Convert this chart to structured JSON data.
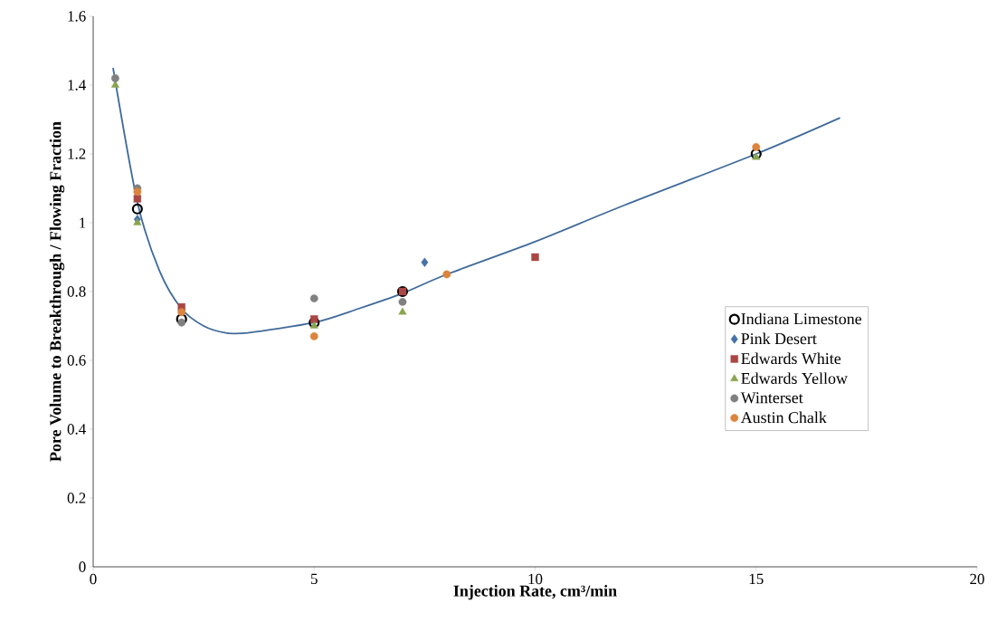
{
  "chart_data": {
    "type": "scatter",
    "xlabel": "Injection Rate, cm³/min",
    "ylabel": "Pore Volume to Breakthrough / Flowing Fraction",
    "xlim": [
      0,
      20
    ],
    "ylim": [
      0,
      1.6
    ],
    "xticks": [
      0,
      5,
      10,
      15,
      20
    ],
    "yticks": [
      0,
      0.2,
      0.4,
      0.6,
      0.8,
      1,
      1.2,
      1.4,
      1.6
    ],
    "grid": false,
    "legend": "right",
    "series": [
      {
        "name": "Indiana Limestone",
        "color": "#000000",
        "marker": "circle",
        "x": [
          1,
          2,
          5,
          7,
          15
        ],
        "values": [
          1.04,
          0.72,
          0.71,
          0.8,
          1.2
        ]
      },
      {
        "name": "Pink Desert",
        "color": "#4572a7",
        "marker": "diamond",
        "x": [
          1,
          7.5
        ],
        "values": [
          1.01,
          0.885
        ]
      },
      {
        "name": "Edwards White",
        "color": "#aa4643",
        "marker": "square",
        "x": [
          1,
          2,
          5,
          7,
          10
        ],
        "values": [
          1.07,
          0.755,
          0.72,
          0.8,
          0.9
        ]
      },
      {
        "name": "Edwards Yellow",
        "color": "#89a54e",
        "marker": "triangle",
        "x": [
          0.5,
          1,
          2,
          5,
          7,
          15
        ],
        "values": [
          1.4,
          1.0,
          null,
          0.7,
          0.74,
          1.19
        ]
      },
      {
        "name": "Winterset",
        "color": "#808080",
        "marker": "circle",
        "x": [
          0.5,
          1,
          2,
          5,
          7
        ],
        "values": [
          1.42,
          1.1,
          0.71,
          0.78,
          0.77
        ]
      },
      {
        "name": "Austin Chalk",
        "color": "#db843d",
        "marker": "circle",
        "x": [
          1,
          2,
          5,
          8,
          15
        ],
        "values": [
          1.09,
          0.74,
          0.67,
          0.85,
          1.22
        ]
      },
      {
        "type": "line",
        "color": "#3f6a9a",
        "marker": "none",
        "x": [
          0.45,
          1,
          1.5,
          2,
          2.5,
          3,
          3.5,
          5,
          6,
          7,
          8,
          10,
          12,
          15,
          16.9
        ],
        "values": [
          1.45,
          1.06,
          0.86,
          0.75,
          0.7,
          0.68,
          0.68,
          0.71,
          0.75,
          0.795,
          0.85,
          0.945,
          1.05,
          1.2,
          1.305
        ]
      }
    ]
  }
}
